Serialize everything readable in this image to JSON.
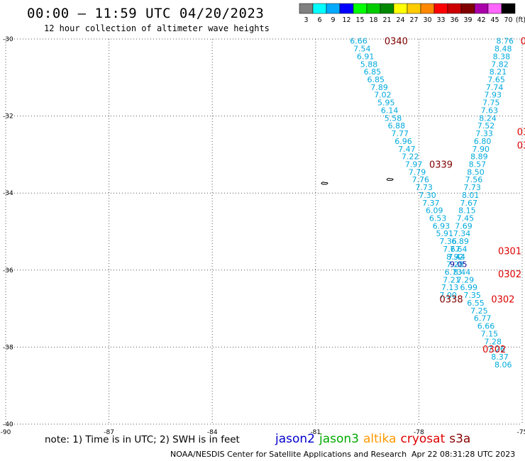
{
  "header": {
    "title": "00:00 – 11:59 UTC 04/20/2023",
    "subtitle": "12 hour collection of altimeter wave heights"
  },
  "legend": {
    "unit": "(ft)",
    "bins": [
      {
        "label": "3",
        "color": "#808080"
      },
      {
        "label": "6",
        "color": "#00ffff"
      },
      {
        "label": "9",
        "color": "#00aaff"
      },
      {
        "label": "12",
        "color": "#0000ff"
      },
      {
        "label": "15",
        "color": "#00ff00"
      },
      {
        "label": "18",
        "color": "#00cc00"
      },
      {
        "label": "21",
        "color": "#008800"
      },
      {
        "label": "24",
        "color": "#ffff00"
      },
      {
        "label": "27",
        "color": "#ffcc00"
      },
      {
        "label": "30",
        "color": "#ff8800"
      },
      {
        "label": "33",
        "color": "#ff0000"
      },
      {
        "label": "36",
        "color": "#cc0000"
      },
      {
        "label": "39",
        "color": "#800000"
      },
      {
        "label": "42",
        "color": "#aa00aa"
      },
      {
        "label": "45",
        "color": "#ff66ff"
      },
      {
        "label": "70",
        "color": "#000000"
      }
    ]
  },
  "axes": {
    "lat": {
      "min": -40,
      "max": -30,
      "ticks": [
        "-30",
        "-32",
        "-34",
        "-36",
        "-38",
        "-40"
      ]
    },
    "lon": {
      "min": -90,
      "max": -75,
      "ticks": [
        "-90",
        "-87",
        "-84",
        "-81",
        "-78",
        "-75"
      ]
    }
  },
  "map_data": {
    "track_color": "#00aadd",
    "track_dark": "#000099",
    "tracks": [
      {
        "start_lat": -30.05,
        "step": -0.2,
        "start_lon": -79.75,
        "lon_step": 0.1,
        "values": [
          "6.66",
          "7.54",
          "6.91",
          "5.88",
          "6.85",
          "6.85",
          "7.89",
          "7.02",
          "5.95",
          "6.14",
          "5.58",
          "6.88",
          "7.77",
          "6.96",
          "7.47",
          "7.22",
          "7.97",
          "7.79",
          "7.76",
          "7.73",
          "7.30",
          "7.37",
          "6.09",
          "6.53",
          "6.93",
          "5.91",
          "7.36",
          "7.67",
          "8.92",
          "9.05",
          "8.44",
          "7.29",
          "6.99",
          "7.35",
          "6.55",
          "7.25",
          "6.77",
          "6.66",
          "7.15",
          "7.28",
          "7.26",
          "8.37",
          "8.06"
        ],
        "dark_index": 29
      },
      {
        "start_lat": -30.05,
        "step": -0.2,
        "start_lon": -75.5,
        "lon_step": -0.05,
        "values": [
          "8.76",
          "8.48",
          "8.38",
          "7.82",
          "8.21",
          "7.65",
          "7.74",
          "7.93",
          "7.75",
          "7.63",
          "8.24",
          "7.52",
          "7.33",
          "6.80",
          "7.90",
          "8.89",
          "8.57",
          "8.50",
          "7.56",
          "7.73",
          "8.01",
          "7.67",
          "8.15",
          "7.45",
          "7.69",
          "7.34",
          "6.89",
          "7.64",
          "7.44",
          "7.28",
          "6.73",
          "7.21",
          "7.13",
          "7.00"
        ]
      }
    ],
    "passes": [
      {
        "label": "0340",
        "lat": -30.05,
        "lon": -79.0,
        "color": "#800000"
      },
      {
        "label": "0339",
        "lat": -33.25,
        "lon": -77.7,
        "color": "#800000"
      },
      {
        "label": "0338",
        "lat": -36.75,
        "lon": -77.4,
        "color": "#800000"
      },
      {
        "label": "0301",
        "lat": -35.5,
        "lon": -75.7,
        "color": "#dd0000"
      },
      {
        "label": "0302",
        "lat": -36.1,
        "lon": -75.7,
        "color": "#dd0000"
      },
      {
        "label": "0302",
        "lat": -36.75,
        "lon": -75.9,
        "color": "#dd0000"
      },
      {
        "label": "0302",
        "lat": -38.05,
        "lon": -76.15,
        "color": "#dd0000"
      },
      {
        "label": "030",
        "lat": -32.4,
        "lon": -75.15,
        "color": "#dd0000"
      },
      {
        "label": "030",
        "lat": -32.75,
        "lon": -75.15,
        "color": "#dd0000"
      },
      {
        "label": "0",
        "lat": -30.05,
        "lon": -75.05,
        "color": "#dd0000"
      }
    ],
    "islands": [
      {
        "name": "robinson-crusoe-island",
        "lat": -33.65,
        "lon": -78.85
      },
      {
        "name": "alejandro-selkirk-island",
        "lat": -33.75,
        "lon": -80.75
      }
    ]
  },
  "footer": {
    "note": "note:  1) Time is in UTC;  2) SWH is in feet",
    "satellites": [
      {
        "name": "jason2",
        "color": "#0000cc"
      },
      {
        "name": "jason3",
        "color": "#00aa00"
      },
      {
        "name": "altika",
        "color": "#ff9900"
      },
      {
        "name": "cryosat",
        "color": "#dd0000"
      },
      {
        "name": "s3a",
        "color": "#880000"
      }
    ],
    "credit": "NOAA/NESDIS Center for Satellite Applications and Research",
    "timestamp": "Apr 22 08:31:28 UTC 2023"
  }
}
